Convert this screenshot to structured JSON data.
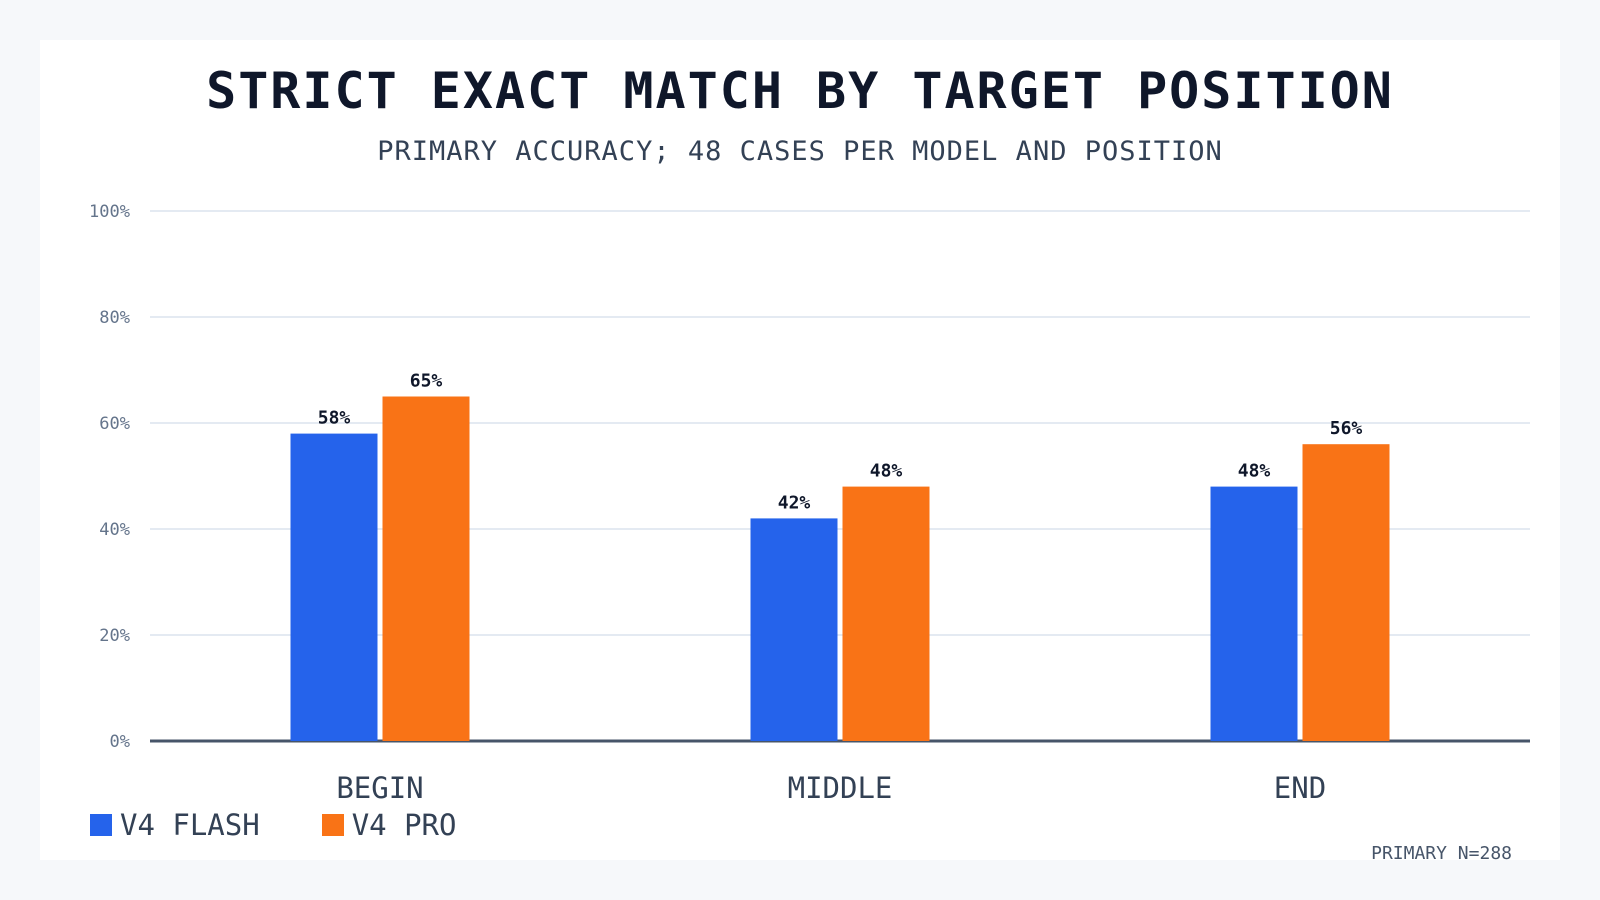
{
  "chart_data": {
    "type": "bar",
    "title": "STRICT EXACT MATCH BY TARGET POSITION",
    "subtitle": "PRIMARY ACCURACY; 48 CASES PER MODEL AND POSITION",
    "categories": [
      "BEGIN",
      "MIDDLE",
      "END"
    ],
    "series": [
      {
        "name": "V4 FLASH",
        "values": [
          58,
          42,
          48
        ],
        "labels": [
          "58%",
          "42%",
          "48%"
        ],
        "color": "#2563eb"
      },
      {
        "name": "V4 PRO",
        "values": [
          65,
          48,
          56
        ],
        "labels": [
          "65%",
          "48%",
          "56%"
        ],
        "color": "#f97316"
      }
    ],
    "yticks": [
      0,
      20,
      40,
      60,
      80,
      100
    ],
    "ytick_labels": [
      "0%",
      "20%",
      "40%",
      "60%",
      "80%",
      "100%"
    ],
    "ylim": [
      0,
      100
    ],
    "xlabel": "",
    "ylabel": "",
    "grid": true,
    "legend_position": "bottom-left",
    "footnote": "PRIMARY N=288"
  }
}
